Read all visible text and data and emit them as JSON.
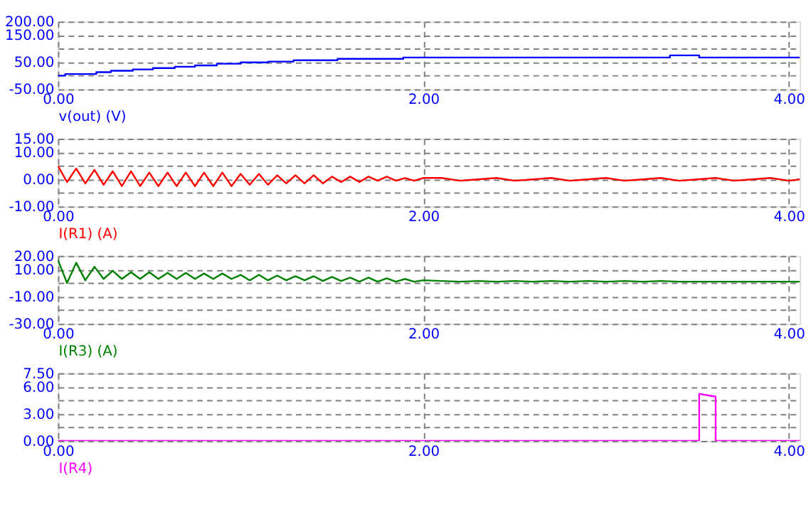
{
  "chart_data": [
    {
      "type": "step",
      "x": [
        0,
        0.04,
        0.21,
        0.29,
        0.41,
        0.52,
        0.64,
        0.75,
        0.87,
        1.0,
        1.15,
        1.29,
        1.53,
        1.89,
        3.35,
        3.51,
        4.06
      ],
      "series": [
        {
          "name": "v(out) (V)",
          "color": "#0000ff",
          "values": [
            0,
            6,
            13,
            18,
            23,
            28,
            33,
            38,
            44,
            49,
            52,
            57,
            62,
            67,
            75,
            67,
            67
          ]
        }
      ],
      "xlim": [
        0,
        4.06
      ],
      "xticks": [
        {
          "value": 0,
          "label": "0.00"
        },
        {
          "value": 2,
          "label": "2.00"
        },
        {
          "value": 4,
          "label": "4.00"
        }
      ],
      "ylim": [
        -50,
        200
      ],
      "yticks": [
        {
          "value": -50,
          "label": "-50.00"
        },
        {
          "value": 0,
          "label": null
        },
        {
          "value": 50,
          "label": "50.00"
        },
        {
          "value": 100,
          "label": null
        },
        {
          "value": 150,
          "label": "150.00"
        },
        {
          "value": 200,
          "label": "200.00"
        }
      ],
      "grid": true
    },
    {
      "type": "line",
      "x": [
        0,
        0.05,
        0.1,
        0.15,
        0.2,
        0.25,
        0.3,
        0.35,
        0.4,
        0.45,
        0.5,
        0.55,
        0.6,
        0.65,
        0.7,
        0.75,
        0.8,
        0.85,
        0.9,
        0.95,
        1.0,
        1.05,
        1.1,
        1.15,
        1.2,
        1.25,
        1.3,
        1.35,
        1.4,
        1.45,
        1.5,
        1.55,
        1.6,
        1.65,
        1.7,
        1.75,
        1.8,
        1.85,
        1.9,
        1.95,
        2.0,
        2.1,
        2.2,
        2.3,
        2.4,
        2.5,
        2.6,
        2.7,
        2.8,
        2.9,
        3.0,
        3.1,
        3.2,
        3.3,
        3.4,
        3.5,
        3.6,
        3.7,
        3.8,
        3.9,
        4.0,
        4.06
      ],
      "series": [
        {
          "name": "I(R1) (A)",
          "color": "#ff0000",
          "values": [
            5,
            -1,
            4,
            -1.5,
            3.5,
            -2,
            3,
            -2.5,
            3,
            -2.5,
            2.5,
            -2.5,
            2.5,
            -2.5,
            2.5,
            -2.5,
            2.5,
            -2.5,
            2.5,
            -2.5,
            2,
            -2,
            2,
            -2,
            1.5,
            -1.5,
            1.5,
            -1.5,
            1.5,
            -1.5,
            1,
            -1,
            1,
            -1,
            1,
            -0.5,
            1,
            -0.5,
            0.5,
            -0.5,
            0.5,
            0.5,
            -0.5,
            0,
            0.5,
            -0.5,
            0,
            0.5,
            -0.5,
            0,
            0.5,
            -0.5,
            0,
            0.5,
            -0.5,
            0,
            0.5,
            -0.5,
            0,
            0.5,
            -0.5,
            0
          ]
        }
      ],
      "xlim": [
        0,
        4.06
      ],
      "xticks": [
        {
          "value": 0,
          "label": "0.00"
        },
        {
          "value": 2,
          "label": "2.00"
        },
        {
          "value": 4,
          "label": "4.00"
        }
      ],
      "ylim": [
        -10,
        15
      ],
      "yticks": [
        {
          "value": -10,
          "label": "-10.00"
        },
        {
          "value": -5,
          "label": null
        },
        {
          "value": 0,
          "label": "0.00"
        },
        {
          "value": 5,
          "label": null
        },
        {
          "value": 10,
          "label": "10.00"
        },
        {
          "value": 15,
          "label": "15.00"
        }
      ],
      "grid": true
    },
    {
      "type": "line",
      "x": [
        0,
        0.05,
        0.1,
        0.15,
        0.2,
        0.25,
        0.3,
        0.35,
        0.4,
        0.45,
        0.5,
        0.55,
        0.6,
        0.65,
        0.7,
        0.75,
        0.8,
        0.85,
        0.9,
        0.95,
        1.0,
        1.05,
        1.1,
        1.15,
        1.2,
        1.25,
        1.3,
        1.35,
        1.4,
        1.45,
        1.5,
        1.55,
        1.6,
        1.65,
        1.7,
        1.75,
        1.8,
        1.85,
        1.9,
        1.95,
        2.0,
        2.1,
        2.2,
        2.3,
        2.4,
        2.5,
        2.6,
        2.7,
        2.8,
        2.9,
        3.0,
        3.1,
        3.2,
        3.3,
        3.4,
        3.5,
        3.6,
        3.7,
        3.8,
        3.9,
        4.0,
        4.06
      ],
      "series": [
        {
          "name": "I(R3) (A)",
          "color": "#008000",
          "values": [
            17,
            0,
            15,
            2,
            12,
            3,
            9,
            3,
            8,
            3,
            8,
            3,
            7.5,
            3,
            7.5,
            3,
            7,
            3,
            7,
            3,
            6,
            2,
            6,
            2,
            5.5,
            2,
            5,
            2,
            5,
            1.5,
            4.5,
            1.5,
            4,
            1,
            4,
            1,
            3.5,
            1,
            3,
            1,
            2,
            1.5,
            1,
            1.5,
            1,
            1.5,
            1,
            1.5,
            1,
            1.5,
            1,
            1.5,
            1,
            1.5,
            1,
            1,
            1,
            1,
            1,
            1,
            1,
            1
          ]
        }
      ],
      "xlim": [
        0,
        4.06
      ],
      "xticks": [
        {
          "value": 0,
          "label": "0.00"
        },
        {
          "value": 2,
          "label": "2.00"
        },
        {
          "value": 4,
          "label": "4.00"
        }
      ],
      "ylim": [
        -30,
        20
      ],
      "yticks": [
        {
          "value": -30,
          "label": "-30.00"
        },
        {
          "value": -20,
          "label": null
        },
        {
          "value": -10,
          "label": "-10.00"
        },
        {
          "value": 0,
          "label": null
        },
        {
          "value": 10,
          "label": "10.00"
        },
        {
          "value": 20,
          "label": "20.00"
        }
      ],
      "grid": true
    },
    {
      "type": "line",
      "x": [
        0,
        3.51,
        3.51,
        3.6,
        3.6,
        4.06
      ],
      "series": [
        {
          "name": "I(R4)",
          "color": "#ff00ff",
          "values": [
            0,
            0,
            5.2,
            4.9,
            0,
            0
          ]
        }
      ],
      "xlim": [
        0,
        4.06
      ],
      "xticks": [
        {
          "value": 0,
          "label": "0.00"
        },
        {
          "value": 2,
          "label": "2.00"
        },
        {
          "value": 4,
          "label": "4.00"
        }
      ],
      "ylim": [
        0,
        7.5
      ],
      "yticks": [
        {
          "value": 0,
          "label": "0.00"
        },
        {
          "value": 1.5,
          "label": null
        },
        {
          "value": 3,
          "label": "3.00"
        },
        {
          "value": 4.5,
          "label": null
        },
        {
          "value": 6,
          "label": "6.00"
        },
        {
          "value": 7.5,
          "label": "7.50"
        }
      ],
      "grid": true
    }
  ]
}
